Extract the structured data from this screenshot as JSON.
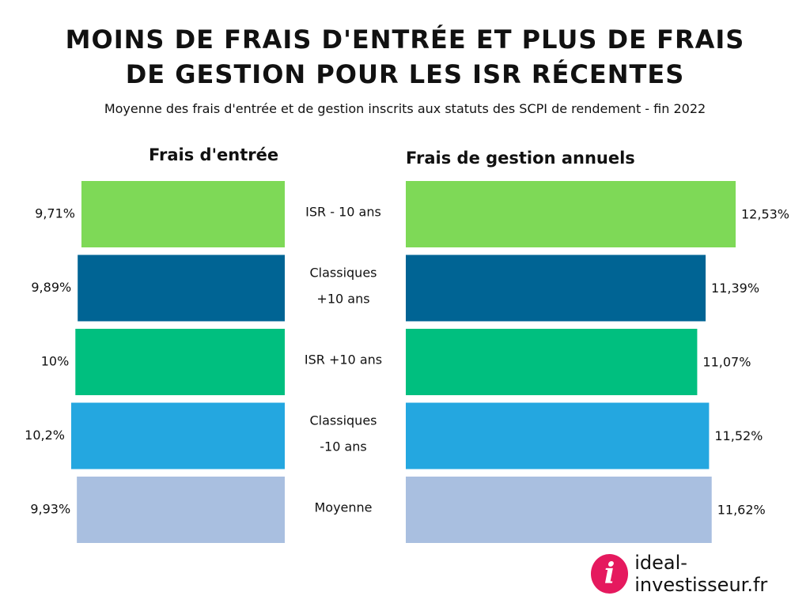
{
  "header": {
    "title_line1": "MOINS DE FRAIS D'ENTRÉE ET PLUS DE FRAIS",
    "title_line2": "DE GESTION POUR LES ISR RÉCENTES",
    "subtitle": "Moyenne des frais d'entrée et de gestion inscrits aux statuts des SCPI de rendement - fin 2022"
  },
  "chart_data": [
    {
      "type": "bar",
      "orientation": "horizontal",
      "direction": "right-to-left",
      "title": "Frais d'entrée",
      "categories": [
        [
          "ISR - 10 ans"
        ],
        [
          "Classiques",
          "+10 ans"
        ],
        [
          "ISR +10 ans"
        ],
        [
          "Classiques",
          "-10 ans"
        ],
        [
          "Moyenne"
        ]
      ],
      "values": [
        9.71,
        9.89,
        10,
        10.2,
        9.93
      ],
      "value_labels": [
        "9,71%",
        "9,89%",
        "10%",
        "10,2%",
        "9,93%"
      ],
      "colors": [
        "#7ed957",
        "#006494",
        "#00bf7f",
        "#24a7e0",
        "#a9bfe0"
      ]
    },
    {
      "type": "bar",
      "orientation": "horizontal",
      "direction": "left-to-right",
      "title": "Frais de gestion annuels",
      "categories": [
        [
          "ISR - 10 ans"
        ],
        [
          "Classiques",
          "+10 ans"
        ],
        [
          "ISR +10 ans"
        ],
        [
          "Classiques",
          "-10 ans"
        ],
        [
          "Moyenne"
        ]
      ],
      "values": [
        12.53,
        11.39,
        11.07,
        11.52,
        11.62
      ],
      "value_labels": [
        "12,53%",
        "11,39%",
        "11,07%",
        "11,52%",
        "11,62%"
      ],
      "colors": [
        "#7ed957",
        "#006494",
        "#00bf7f",
        "#24a7e0",
        "#a9bfe0"
      ]
    }
  ],
  "footer": {
    "logo_glyph": "i",
    "logo_text": "ideal-investisseur.fr",
    "logo_color": "#e5195e"
  }
}
